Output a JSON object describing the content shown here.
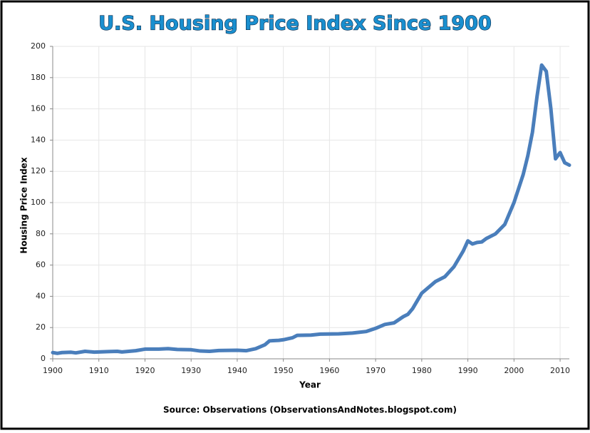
{
  "chart_data": {
    "type": "line",
    "title": "U.S. Housing Price Index Since 1900",
    "x_label": "Year",
    "y_label": "Housing Price Index",
    "source": "Source: Observations  (ObservationsAndNotes.blogspot.com)",
    "x": [
      1900,
      1901,
      1902,
      1904,
      1905,
      1907,
      1909,
      1912,
      1914,
      1915,
      1918,
      1920,
      1923,
      1925,
      1927,
      1930,
      1932,
      1934,
      1936,
      1940,
      1942,
      1944,
      1946,
      1947,
      1949,
      1950,
      1952,
      1953,
      1956,
      1958,
      1962,
      1965,
      1968,
      1970,
      1972,
      1974,
      1976,
      1977,
      1978,
      1980,
      1982,
      1983,
      1985,
      1987,
      1989,
      1990,
      1991,
      1992,
      1993,
      1994,
      1996,
      1998,
      2000,
      2002,
      2003,
      2004,
      2005,
      2006,
      2007,
      2008,
      2009,
      2010,
      2011,
      2012
    ],
    "series": [
      {
        "name": "Housing Price Index",
        "color": "#4a7ebb",
        "values": [
          4,
          3.5,
          4,
          4.2,
          3.8,
          4.8,
          4.3,
          4.6,
          4.8,
          4.4,
          5.2,
          6.2,
          6.2,
          6.5,
          6,
          5.8,
          5,
          4.8,
          5.3,
          5.5,
          5.2,
          6.5,
          9,
          11.5,
          11.8,
          12.2,
          13.5,
          15,
          15.2,
          15.8,
          16,
          16.5,
          17.5,
          19.5,
          22,
          23,
          27,
          28.5,
          32,
          42,
          47,
          49.5,
          52.5,
          59,
          69,
          75.5,
          73.5,
          74.5,
          74.8,
          77,
          80,
          86,
          100,
          118,
          130,
          145,
          168,
          188,
          184,
          160,
          128,
          132,
          125.5,
          124
        ]
      }
    ],
    "xlim": [
      1900,
      2012
    ],
    "xticks": [
      1900,
      1910,
      1920,
      1930,
      1940,
      1950,
      1960,
      1970,
      1980,
      1990,
      2000,
      2010
    ],
    "ylim": [
      0,
      200
    ],
    "yticks": [
      0,
      20,
      40,
      60,
      80,
      100,
      120,
      140,
      160,
      180,
      200
    ],
    "grid": true
  }
}
